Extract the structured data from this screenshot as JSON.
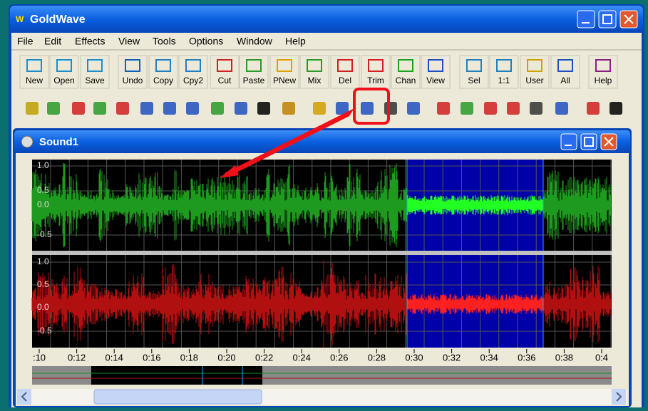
{
  "window": {
    "title": "GoldWave",
    "menu": [
      "File",
      "Edit",
      "Effects",
      "View",
      "Tools",
      "Options",
      "Window",
      "Help"
    ],
    "toolbar": [
      "New",
      "Open",
      "Save",
      "Undo",
      "Copy",
      "Cpy2",
      "Cut",
      "Paste",
      "PNew",
      "Mix",
      "Del",
      "Trim",
      "Chan",
      "View",
      "Sel",
      "1:1",
      "User",
      "All",
      "Help"
    ]
  },
  "document": {
    "title": "Sound1",
    "amplitude_labels": [
      "1.0",
      "0.5",
      "0.0",
      "-0.5"
    ],
    "time_labels": [
      ":10",
      "0:12",
      "0:14",
      "0:16",
      "0:18",
      "0:20",
      "0:22",
      "0:24",
      "0:26",
      "0:28",
      "0:30",
      "0:32",
      "0:34",
      "0:36",
      "0:38",
      "0:4"
    ]
  }
}
